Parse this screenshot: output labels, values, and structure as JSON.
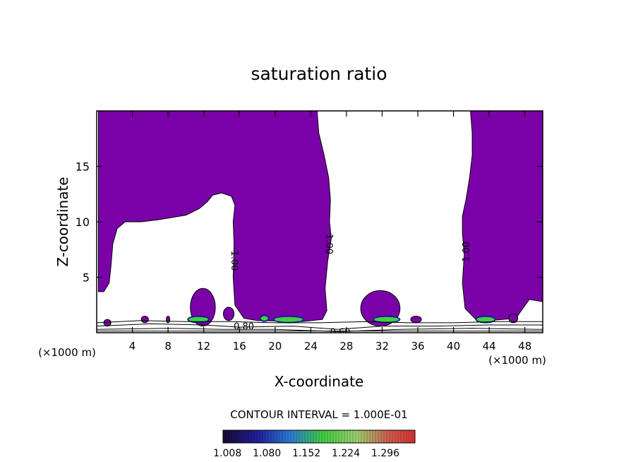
{
  "chart_data": {
    "type": "heatmap",
    "title": "saturation ratio",
    "xlabel": "X-coordinate",
    "ylabel": "Z-coordinate",
    "x_unit_left": "(×1000 m)",
    "x_unit_right": "(×1000 m)",
    "xlim": [
      0,
      50
    ],
    "ylim": [
      0,
      20
    ],
    "x_ticks": [
      4,
      8,
      12,
      16,
      20,
      24,
      28,
      32,
      36,
      40,
      44,
      48
    ],
    "y_ticks": [
      5,
      10,
      15
    ],
    "contour_interval_text": "CONTOUR INTERVAL = 1.000E-01",
    "contour_labels": [
      {
        "text": "1.00",
        "x": 15.4,
        "z": 6.5,
        "rotate": 90
      },
      {
        "text": "1.00",
        "x": 26.0,
        "z": 8.0,
        "rotate": 90
      },
      {
        "text": "1.00",
        "x": 41.5,
        "z": 7.3,
        "rotate": -90
      },
      {
        "text": "0.80",
        "x": 16.5,
        "z": 0.5,
        "rotate": 0
      },
      {
        "text": "0.60",
        "x": 27.3,
        "z": 0.0,
        "rotate": 0
      }
    ],
    "colorbar": {
      "min": 1.0,
      "max": 1.35,
      "ticks": [
        "1.008",
        "1.080",
        "1.152",
        "1.224",
        "1.296"
      ]
    },
    "colors": {
      "supersaturated": "#7a00a8",
      "bar_low": "#7a00a8",
      "bar_blue": "#1a1aa0",
      "bar_green": "#40d040",
      "bar_red": "#d03030"
    },
    "regions": {
      "main": [
        [
          0.2,
          20
        ],
        [
          24.7,
          20
        ],
        [
          24.9,
          18
        ],
        [
          25.5,
          16
        ],
        [
          26.0,
          14
        ],
        [
          26.2,
          12
        ],
        [
          26.1,
          10
        ],
        [
          26.3,
          8.5
        ],
        [
          25.9,
          6.5
        ],
        [
          25.6,
          4
        ],
        [
          25.8,
          2
        ],
        [
          25.3,
          1.2
        ],
        [
          23,
          1.0
        ],
        [
          18,
          1.1
        ],
        [
          16.5,
          1.3
        ],
        [
          15.5,
          2.5
        ],
        [
          15.3,
          5
        ],
        [
          15.4,
          8
        ],
        [
          15.3,
          10
        ],
        [
          15.5,
          11.5
        ],
        [
          15.1,
          12.3
        ],
        [
          14,
          12.6
        ],
        [
          13,
          12.4
        ],
        [
          12.4,
          11.8
        ],
        [
          11.5,
          11.2
        ],
        [
          10,
          10.6
        ],
        [
          7,
          10.2
        ],
        [
          5,
          10.0
        ],
        [
          3.2,
          10.0
        ],
        [
          2.3,
          9.4
        ],
        [
          1.8,
          8
        ],
        [
          1.6,
          6
        ],
        [
          1.4,
          4.5
        ],
        [
          0.8,
          3.7
        ],
        [
          0.2,
          3.7
        ]
      ],
      "right": [
        [
          41.9,
          20
        ],
        [
          50,
          20
        ],
        [
          50,
          2.8
        ],
        [
          48.5,
          3.0
        ],
        [
          47.6,
          2.0
        ],
        [
          47,
          1.3
        ],
        [
          44,
          1.1
        ],
        [
          42.5,
          1.2
        ],
        [
          41.3,
          2.2
        ],
        [
          41.0,
          4.5
        ],
        [
          41.2,
          7
        ],
        [
          41.0,
          9
        ],
        [
          41.0,
          10.5
        ],
        [
          41.4,
          12
        ],
        [
          41.8,
          14
        ],
        [
          42.1,
          16
        ],
        [
          42.1,
          18
        ]
      ],
      "blobs": [
        {
          "x": 11.9,
          "z": 2.3,
          "rx": 1.4,
          "rz": 1.7
        },
        {
          "x": 31.8,
          "z": 2.2,
          "rx": 2.2,
          "rz": 1.6
        },
        {
          "x": 14.8,
          "z": 1.7,
          "rx": 0.6,
          "rz": 0.6
        },
        {
          "x": 5.4,
          "z": 1.2,
          "rx": 0.4,
          "rz": 0.3
        },
        {
          "x": 35.8,
          "z": 1.2,
          "rx": 0.6,
          "rz": 0.3
        },
        {
          "x": 1.2,
          "z": 0.9,
          "rx": 0.4,
          "rz": 0.3
        },
        {
          "x": 8.0,
          "z": 1.2,
          "rx": 0.2,
          "rz": 0.3
        },
        {
          "x": 46.7,
          "z": 1.3,
          "rx": 0.5,
          "rz": 0.4
        }
      ],
      "hot_spots": [
        {
          "x": 11.4,
          "z": 1.2,
          "rx": 1.1,
          "rz": 0.22
        },
        {
          "x": 21.5,
          "z": 1.2,
          "rx": 1.6,
          "rz": 0.22
        },
        {
          "x": 32.5,
          "z": 1.2,
          "rx": 1.4,
          "rz": 0.22
        },
        {
          "x": 43.6,
          "z": 1.2,
          "rx": 1.0,
          "rz": 0.22
        },
        {
          "x": 18.8,
          "z": 1.3,
          "rx": 0.4,
          "rz": 0.2
        }
      ],
      "surface_contours": [
        [
          [
            0,
            0.9
          ],
          [
            5,
            1.1
          ],
          [
            10,
            1.0
          ],
          [
            15,
            1.0
          ],
          [
            20,
            0.9
          ],
          [
            25,
            0.9
          ],
          [
            30,
            1.0
          ],
          [
            35,
            0.9
          ],
          [
            40,
            0.9
          ],
          [
            45,
            1.0
          ],
          [
            50,
            1.0
          ]
        ],
        [
          [
            0,
            0.6
          ],
          [
            6,
            0.8
          ],
          [
            12,
            0.7
          ],
          [
            16,
            0.5
          ],
          [
            22,
            0.6
          ],
          [
            27,
            0.3
          ],
          [
            32,
            0.6
          ],
          [
            38,
            0.6
          ],
          [
            44,
            0.7
          ],
          [
            50,
            0.7
          ]
        ],
        [
          [
            0,
            0.3
          ],
          [
            8,
            0.4
          ],
          [
            14,
            0.3
          ],
          [
            20,
            0.3
          ],
          [
            27,
            0.1
          ],
          [
            34,
            0.3
          ],
          [
            42,
            0.4
          ],
          [
            50,
            0.3
          ]
        ],
        [
          [
            0,
            0.15
          ],
          [
            50,
            0.15
          ]
        ]
      ]
    }
  }
}
